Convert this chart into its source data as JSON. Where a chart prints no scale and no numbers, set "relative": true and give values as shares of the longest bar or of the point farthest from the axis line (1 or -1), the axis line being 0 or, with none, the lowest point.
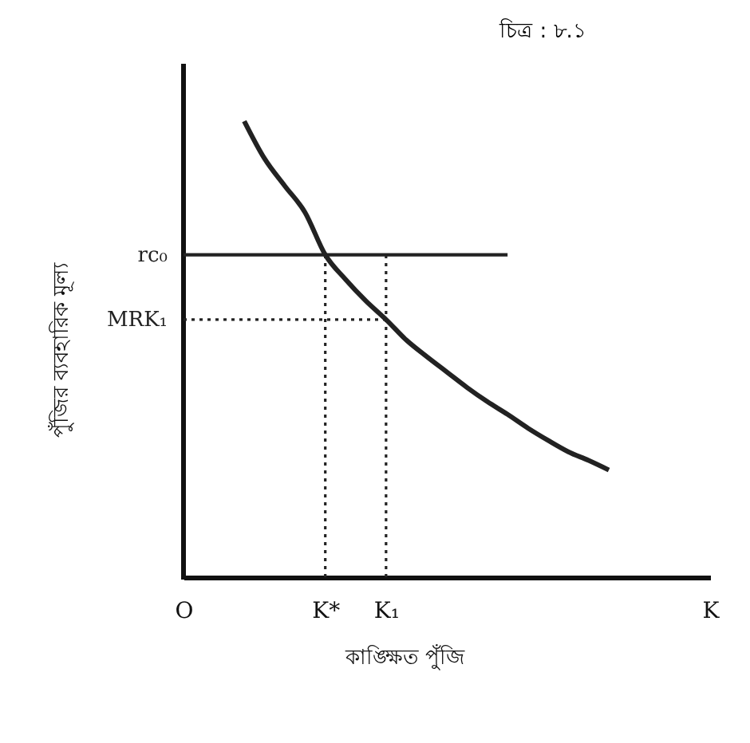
{
  "chart_data": {
    "type": "line",
    "title": "চিত্র : ৮.১",
    "xlabel": "কাঙ্ক্ষিত পুঁজি",
    "ylabel": "পুঁজির ব্যবহারিক মূল্য",
    "relative": true,
    "grid": false,
    "marker": "none",
    "categories": [
      "O",
      null,
      null,
      null,
      null,
      null,
      null,
      "K*",
      null,
      null,
      "K₁",
      null,
      null,
      null,
      null,
      null,
      null,
      null,
      null,
      null,
      null,
      null,
      null,
      null,
      null,
      null,
      "K"
    ],
    "ref_lines": [
      {
        "axis": "x",
        "value": "K*",
        "line_style": "dotted"
      },
      {
        "axis": "x",
        "value": "K₁",
        "line_style": "dotted"
      }
    ],
    "series": [
      {
        "color": "#222222",
        "line_style": "solid",
        "values": [
          null,
          null,
          null,
          1,
          0.918,
          0.858,
          0.8,
          0.707,
          0.653,
          0.606,
          0.565,
          0.52,
          0.484,
          0.45,
          0.416,
          0.385,
          0.357,
          0.327,
          0.3,
          0.275,
          0.256,
          0.235,
          null,
          null,
          null,
          null,
          null
        ]
      },
      {
        "name": "rc₀",
        "color": "#222222",
        "line_style": "solid",
        "values": [
          0.707,
          0.707,
          0.707,
          0.707,
          0.707,
          0.707,
          0.707,
          0.707,
          0.707,
          0.707,
          0.707,
          0.707,
          0.707,
          0.707,
          0.707,
          0.707,
          0.707,
          null,
          null,
          null,
          null,
          null,
          null,
          null,
          null,
          null,
          null
        ]
      },
      {
        "name": "MRK₁",
        "color": "#222222",
        "line_style": "dotted",
        "values": [
          0.565,
          0.565,
          0.565,
          0.565,
          0.565,
          0.565,
          0.565,
          0.565,
          0.565,
          0.565,
          0.565,
          null,
          null,
          null,
          null,
          null,
          null,
          null,
          null,
          null,
          null,
          null,
          null,
          null,
          null,
          null,
          null
        ]
      }
    ]
  }
}
